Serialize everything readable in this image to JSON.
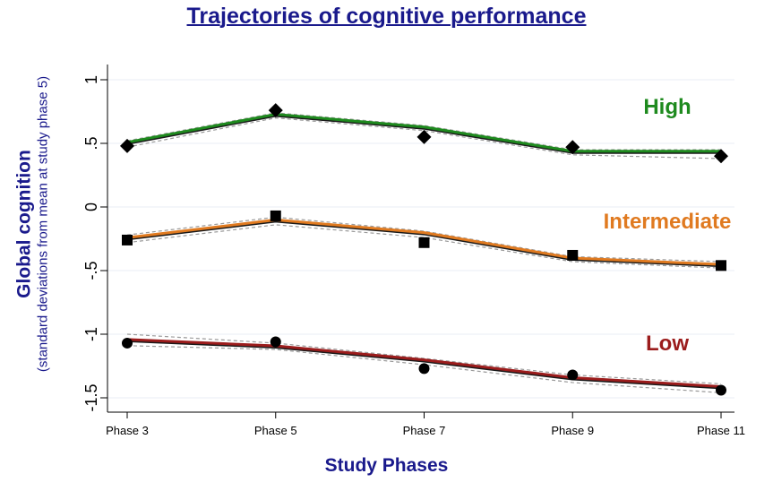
{
  "chart_data": {
    "type": "line",
    "title": "Trajectories of cognitive performance",
    "xlabel": "Study Phases",
    "ylabel": "Global cognition",
    "ylabel_sub": "(standard deviations from mean at study phase 5)",
    "categories": [
      "Phase 3",
      "Phase 5",
      "Phase 7",
      "Phase 9",
      "Phase 11"
    ],
    "ylim": [
      -1.55,
      1.0
    ],
    "yticks": [
      {
        "value": 1,
        "label": "1"
      },
      {
        "value": 0.5,
        "label": ".5"
      },
      {
        "value": 0,
        "label": "0"
      },
      {
        "value": -0.5,
        "label": "-.5"
      },
      {
        "value": -1,
        "label": "-1"
      },
      {
        "value": -1.5,
        "label": "-1.5"
      }
    ],
    "series": [
      {
        "name": "High",
        "color": "#1e8a1e",
        "marker": "diamond",
        "observed": [
          0.48,
          0.76,
          0.55,
          0.47,
          0.4
        ],
        "fitted": [
          0.5,
          0.72,
          0.62,
          0.43,
          0.43
        ],
        "ci_upper": [
          0.52,
          0.74,
          0.64,
          0.45,
          0.45
        ],
        "ci_lower": [
          0.47,
          0.7,
          0.6,
          0.41,
          0.38
        ]
      },
      {
        "name": "Intermediate",
        "color": "#e07a20",
        "marker": "square",
        "observed": [
          -0.26,
          -0.07,
          -0.28,
          -0.38,
          -0.46
        ],
        "fitted": [
          -0.25,
          -0.11,
          -0.21,
          -0.41,
          -0.46
        ],
        "ci_upper": [
          -0.22,
          -0.08,
          -0.19,
          -0.39,
          -0.43
        ],
        "ci_lower": [
          -0.28,
          -0.14,
          -0.24,
          -0.43,
          -0.48
        ]
      },
      {
        "name": "Low",
        "color": "#9b1c1c",
        "marker": "circle",
        "observed": [
          -1.07,
          -1.06,
          -1.27,
          -1.32,
          -1.44
        ],
        "fitted": [
          -1.05,
          -1.1,
          -1.21,
          -1.35,
          -1.42
        ],
        "ci_upper": [
          -1.0,
          -1.07,
          -1.19,
          -1.32,
          -1.39
        ],
        "ci_lower": [
          -1.09,
          -1.12,
          -1.24,
          -1.38,
          -1.46
        ]
      }
    ]
  }
}
